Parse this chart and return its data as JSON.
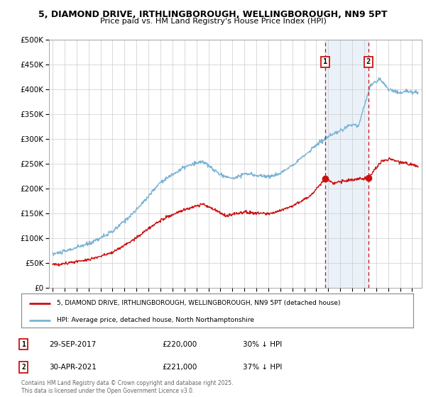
{
  "title_line1": "5, DIAMOND DRIVE, IRTHLINGBOROUGH, WELLINGBOROUGH, NN9 5PT",
  "title_line2": "Price paid vs. HM Land Registry's House Price Index (HPI)",
  "hpi_label": "HPI: Average price, detached house, North Northamptonshire",
  "price_label": "5, DIAMOND DRIVE, IRTHLINGBOROUGH, WELLINGBOROUGH, NN9 5PT (detached house)",
  "hpi_color": "#7ab3d4",
  "price_color": "#cc1111",
  "vline_color": "#cc1111",
  "shade_color": "#dce8f5",
  "ylim": [
    0,
    500000
  ],
  "yticks": [
    0,
    50000,
    100000,
    150000,
    200000,
    250000,
    300000,
    350000,
    400000,
    450000,
    500000
  ],
  "transaction1": {
    "date_x": 2017.75,
    "price": 220000,
    "label": "1",
    "date_str": "29-SEP-2017",
    "pct": "30% ↓ HPI"
  },
  "transaction2": {
    "date_x": 2021.33,
    "price": 221000,
    "label": "2",
    "date_str": "30-APR-2021",
    "pct": "37% ↓ HPI"
  },
  "footer": "Contains HM Land Registry data © Crown copyright and database right 2025.\nThis data is licensed under the Open Government Licence v3.0.",
  "background_color": "#ffffff",
  "grid_color": "#cccccc",
  "xlim_left": 1994.7,
  "xlim_right": 2025.8
}
